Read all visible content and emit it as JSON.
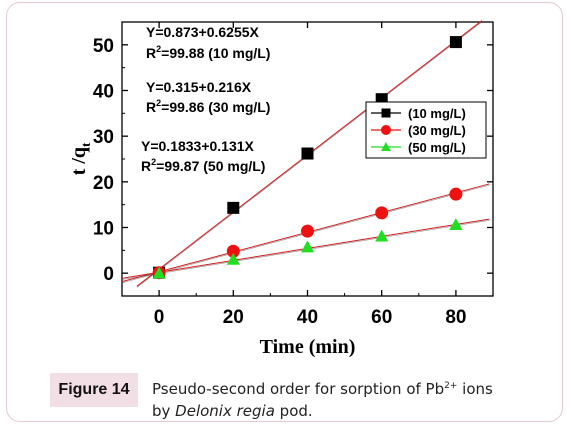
{
  "chart_data": {
    "type": "scatter",
    "xlabel": "Time (min)",
    "ylabel": "t /q",
    "ylabel_sub": "t",
    "xlim": [
      -10,
      90
    ],
    "ylim": [
      -5,
      55
    ],
    "xticks": [
      0,
      20,
      40,
      60,
      80
    ],
    "yticks": [
      0,
      10,
      20,
      30,
      40,
      50
    ],
    "grid": false,
    "legend_position": "right",
    "series": [
      {
        "name": "(10 mg/L)",
        "marker": "square",
        "color": "#000000",
        "line_color": "#d11a1a",
        "x": [
          0,
          20,
          40,
          60,
          80
        ],
        "y": [
          0.1,
          14.3,
          26.2,
          38.1,
          50.6
        ],
        "fit": {
          "intercept": 0.873,
          "slope": 0.6255
        }
      },
      {
        "name": "(30 mg/L)",
        "marker": "circle",
        "color": "#ee1111",
        "line_color": "#d11a1a",
        "x": [
          0,
          20,
          40,
          60,
          80
        ],
        "y": [
          0.1,
          4.8,
          9.2,
          13.2,
          17.3
        ],
        "fit": {
          "intercept": 0.315,
          "slope": 0.216
        }
      },
      {
        "name": "(50 mg/L)",
        "marker": "triangle",
        "color": "#22dd22",
        "line_color": "#d11a1a",
        "x": [
          0,
          20,
          40,
          60,
          80
        ],
        "y": [
          0.0,
          3.0,
          5.7,
          8.1,
          10.6
        ],
        "fit": {
          "intercept": 0.1833,
          "slope": 0.131
        }
      }
    ],
    "annotations": [
      {
        "equation": "Y=0.873+0.6255X",
        "r2": "=99.88 (10 mg/L)"
      },
      {
        "equation": "Y=0.315+0.216X",
        "r2": "=99.86 (30 mg/L)"
      },
      {
        "equation": "Y=0.1833+0.131X",
        "r2": "=99.87 (50 mg/L)"
      }
    ]
  },
  "caption": {
    "label": "Figure 14",
    "text_line1": "Pseudo-second order for sorption of Pb",
    "superscript": "2+",
    "text_line1_end": " ions",
    "text_line2_start": "by ",
    "text_line2_italic": "Delonix regia",
    "text_line2_end": " pod."
  },
  "colors": {
    "caption_bg": "#f2dfe6",
    "frame_border": "#e3c9d2",
    "fit_line": "#d11a1a"
  }
}
